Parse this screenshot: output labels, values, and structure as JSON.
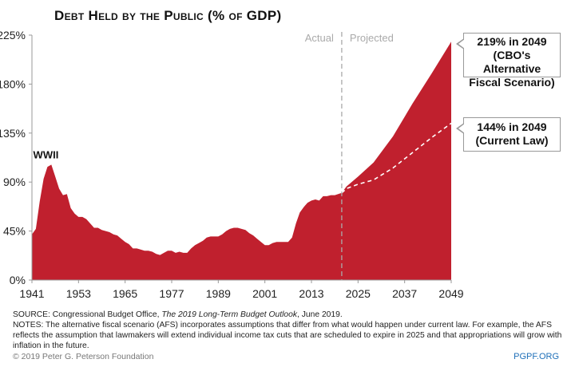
{
  "chart_data": {
    "type": "area",
    "title": "Debt Held by the Public (% of GDP)",
    "xlabel": "",
    "ylabel": "",
    "xlim": [
      1941,
      2049
    ],
    "ylim": [
      0,
      225
    ],
    "y_ticks": [
      0,
      45,
      90,
      135,
      180,
      225
    ],
    "y_tick_labels": [
      "0%",
      "45%",
      "90%",
      "135%",
      "180%",
      "225%"
    ],
    "x_ticks": [
      1941,
      1953,
      1965,
      1977,
      1989,
      2001,
      2013,
      2025,
      2037,
      2049
    ],
    "x_tick_labels": [
      "1941",
      "1953",
      "1965",
      "1977",
      "1989",
      "2001",
      "2013",
      "2025",
      "2037",
      "2049"
    ],
    "divider_year": 2020.8,
    "divider_labels": {
      "left": "Actual",
      "right": "Projected"
    },
    "series": [
      {
        "name": "Actual",
        "x": [
          1941,
          1942,
          1943,
          1944,
          1945,
          1946,
          1947,
          1948,
          1949,
          1950,
          1951,
          1952,
          1953,
          1954,
          1955,
          1956,
          1957,
          1958,
          1959,
          1960,
          1961,
          1962,
          1963,
          1964,
          1965,
          1966,
          1967,
          1968,
          1969,
          1970,
          1971,
          1972,
          1973,
          1974,
          1975,
          1976,
          1977,
          1978,
          1979,
          1980,
          1981,
          1982,
          1983,
          1984,
          1985,
          1986,
          1987,
          1988,
          1989,
          1990,
          1991,
          1992,
          1993,
          1994,
          1995,
          1996,
          1997,
          1998,
          1999,
          2000,
          2001,
          2002,
          2003,
          2004,
          2005,
          2006,
          2007,
          2008,
          2009,
          2010,
          2011,
          2012,
          2013,
          2014,
          2015,
          2016,
          2017,
          2018,
          2019,
          2020.8
        ],
        "values": [
          42,
          47,
          72,
          93,
          104,
          106,
          95,
          84,
          78,
          79,
          66,
          61,
          58,
          58,
          56,
          52,
          48,
          48,
          46,
          45,
          44,
          42,
          41,
          38,
          35,
          33,
          29,
          29,
          28,
          27,
          27,
          26,
          24,
          23,
          25,
          27,
          27,
          25,
          26,
          25,
          25,
          29,
          32,
          34,
          36,
          39,
          40,
          40,
          40,
          42,
          45,
          47,
          48,
          48,
          47,
          46,
          43,
          41,
          38,
          35,
          32,
          32,
          34,
          35,
          35,
          35,
          35,
          39,
          52,
          62,
          67,
          71,
          73,
          74,
          73,
          77,
          77,
          78,
          78,
          80
        ]
      },
      {
        "name": "CBO's Alternative Fiscal Scenario",
        "x": [
          2020.8,
          2022,
          2025,
          2029,
          2034,
          2039,
          2044,
          2049
        ],
        "values": [
          80,
          86,
          95,
          108,
          132,
          162,
          190,
          219
        ]
      },
      {
        "name": "Current Law",
        "x": [
          2020.8,
          2022,
          2025,
          2029,
          2034,
          2039,
          2044,
          2049
        ],
        "values": [
          80,
          84,
          88,
          92,
          103,
          117,
          131,
          144
        ]
      }
    ],
    "annotations": [
      {
        "label": "WWII",
        "year": 1945
      },
      {
        "line1": "219% in 2049",
        "line2": "(CBO's Alternative",
        "line3": "Fiscal Scenario)",
        "year": 2049,
        "value": 219
      },
      {
        "line1": "144% in 2049",
        "line2": "(Current Law)",
        "year": 2049,
        "value": 144
      }
    ],
    "colors": {
      "area": "#c0202e",
      "dash": "#ffffff",
      "divider": "#aaaaaa"
    }
  },
  "footer": {
    "source_prefix": "SOURCE: Congressional Budget Office, ",
    "source_title": "The 2019 Long-Term Budget Outlook",
    "source_suffix": ", June 2019.",
    "notes": "NOTES: The alternative fiscal scenario (AFS) incorporates assumptions that differ from what would happen under current law. For example, the AFS reflects the assumption that lawmakers will extend individual income tax cuts that are scheduled to expire in 2025 and that appropriations will grow with inflation in the future.",
    "copyright": "© 2019 Peter G. Peterson Foundation",
    "site": "PGPF.ORG"
  }
}
